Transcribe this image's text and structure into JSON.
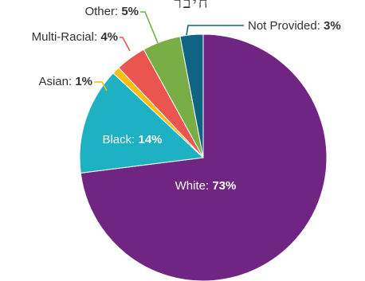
{
  "chart_data": {
    "type": "pie",
    "title": "",
    "slices": [
      {
        "label": "White",
        "value": 73,
        "display": "73%",
        "color": "#702582"
      },
      {
        "label": "Black",
        "value": 14,
        "display": "14%",
        "color": "#1EB1C3"
      },
      {
        "label": "Asian",
        "value": 1,
        "display": "1%",
        "color": "#F9BE12"
      },
      {
        "label": "Multi-Racial",
        "value": 4,
        "display": "4%",
        "color": "#EA5550"
      },
      {
        "label": "Other",
        "value": 5,
        "display": "5%",
        "color": "#79AD46"
      },
      {
        "label": "Not Provided",
        "value": 3,
        "display": "3%",
        "color": "#0F6484"
      }
    ],
    "start_direction": "12 o'clock",
    "direction": "clockwise",
    "legend": "none",
    "label_style": "name: bold percent"
  },
  "partial_heading": "חיבר"
}
